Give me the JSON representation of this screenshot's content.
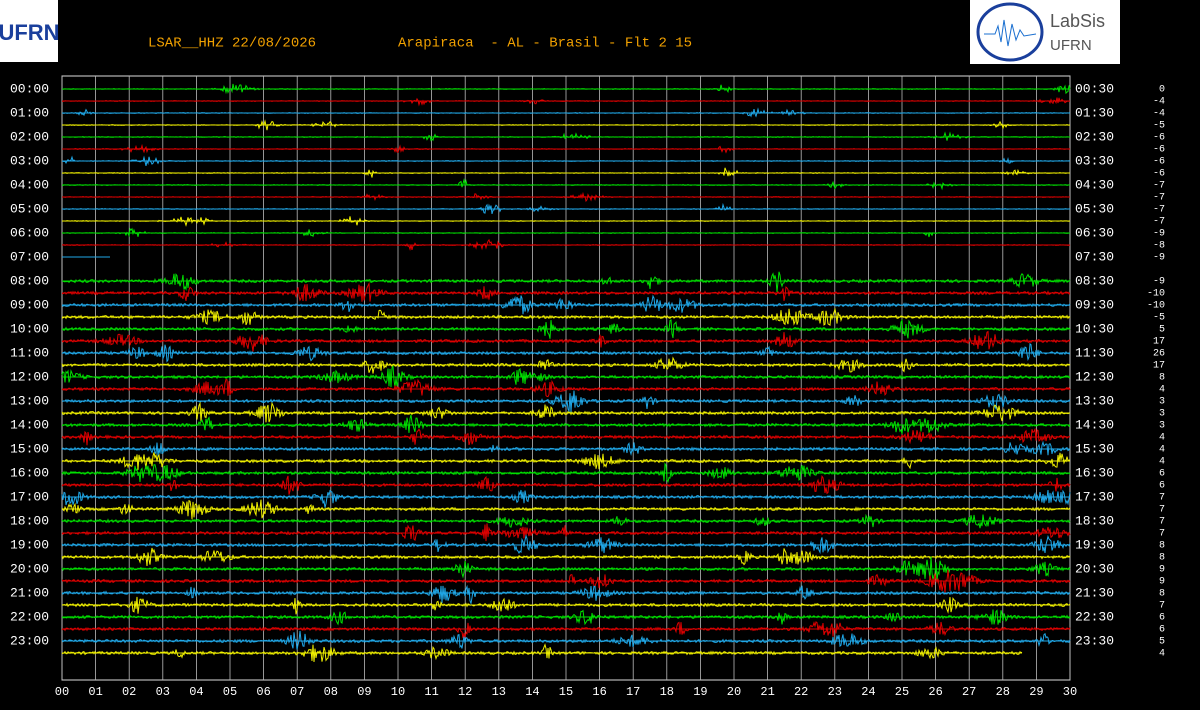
{
  "header": {
    "left_logo": "UFRN",
    "right_logo": "LabSis",
    "right_logo_sub": "UFRN"
  },
  "chart_data": {
    "type": "helicorder",
    "title": "LSAR__HHZ 22/08/2026",
    "subtitle": "Arapiraca  - AL - Brasil - Flt 2 15",
    "xlim": [
      0,
      30
    ],
    "xticks": [
      {
        "value": 0,
        "label": "00"
      },
      {
        "value": 1,
        "label": "01"
      },
      {
        "value": 2,
        "label": "02"
      },
      {
        "value": 3,
        "label": "03"
      },
      {
        "value": 4,
        "label": "04"
      },
      {
        "value": 5,
        "label": "05"
      },
      {
        "value": 6,
        "label": "06"
      },
      {
        "value": 7,
        "label": "07"
      },
      {
        "value": 8,
        "label": "08"
      },
      {
        "value": 9,
        "label": "09"
      },
      10,
      11,
      12,
      13,
      14,
      15,
      16,
      17,
      18,
      19,
      20,
      21,
      22,
      23,
      24,
      25,
      26,
      27,
      28,
      29,
      30
    ],
    "left_labels": [
      "00:00",
      "01:00",
      "02:00",
      "03:00",
      "04:00",
      "05:00",
      "06:00",
      "07:00",
      "08:00",
      "09:00",
      "10:00",
      "11:00",
      "12:00",
      "13:00",
      "14:00",
      "15:00",
      "16:00",
      "17:00",
      "18:00",
      "19:00",
      "20:00",
      "21:00",
      "22:00",
      "23:00"
    ],
    "right_labels": [
      "00:30",
      "01:30",
      "02:30",
      "03:30",
      "04:30",
      "05:30",
      "06:30",
      "07:30",
      "08:30",
      "09:30",
      "10:30",
      "11:30",
      "12:30",
      "13:30",
      "14:30",
      "15:30",
      "16:30",
      "17:30",
      "18:30",
      "19:30",
      "20:30",
      "21:30",
      "22:30",
      "23:30"
    ],
    "row_colors": [
      "#00e000",
      "#e00000",
      "#20a8e8",
      "#f0f000"
    ],
    "row_offsets": [
      0,
      -4,
      -4,
      -5,
      -6,
      -6,
      -6,
      -6,
      -7,
      -7,
      -7,
      -7,
      -9,
      -8,
      -9,
      null,
      -9,
      -10,
      -10,
      -5,
      5,
      17,
      26,
      17,
      8,
      4,
      3,
      3,
      3,
      4,
      4,
      4,
      6,
      6,
      7,
      7,
      7,
      7,
      8,
      8,
      9,
      9,
      8,
      7,
      6,
      6,
      5,
      4
    ]
  }
}
